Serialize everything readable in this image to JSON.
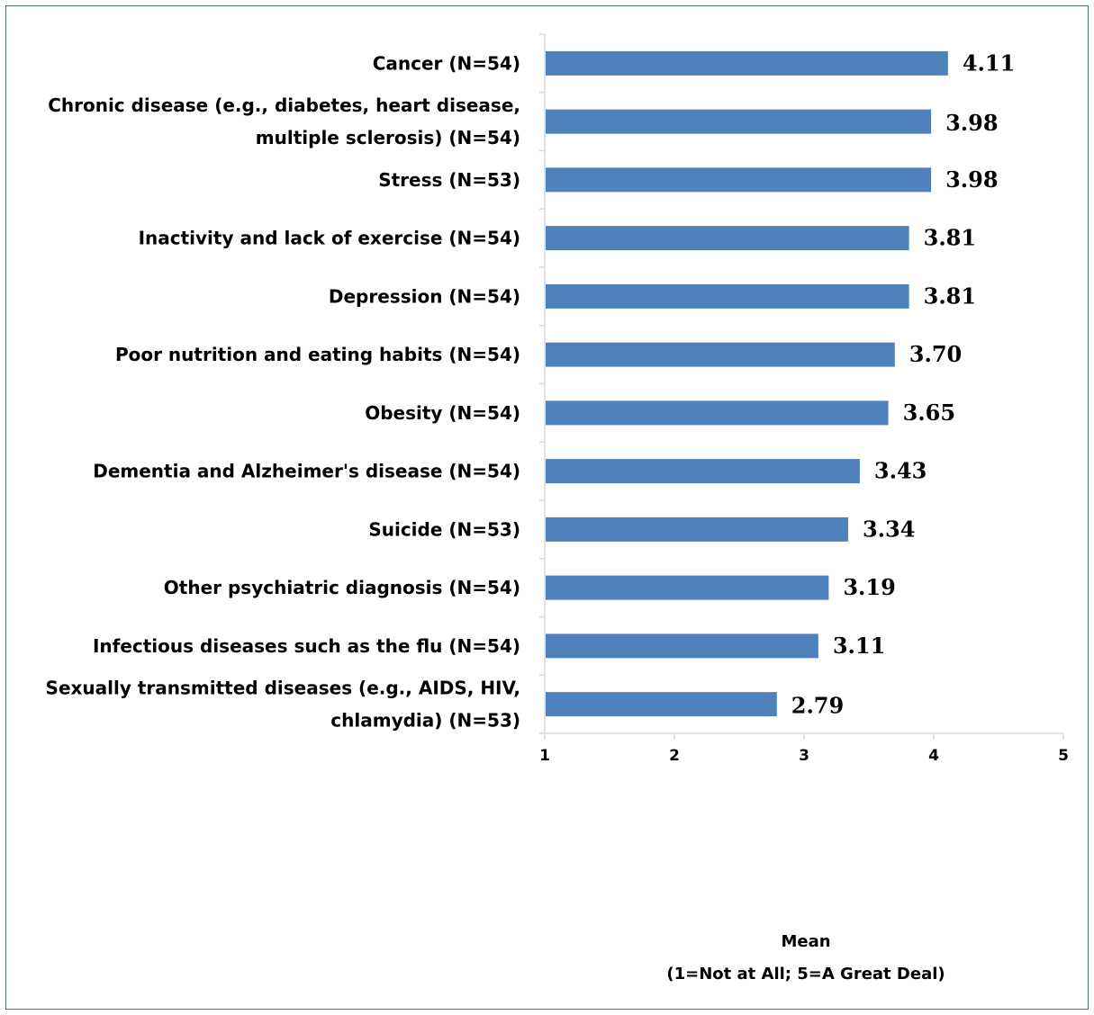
{
  "chart_data": {
    "type": "bar",
    "orientation": "horizontal",
    "categories": [
      [
        "Cancer (N=54)"
      ],
      [
        "Chronic disease (e.g., diabetes, heart disease,",
        "multiple sclerosis) (N=54)"
      ],
      [
        "Stress (N=53)"
      ],
      [
        "Inactivity and lack of exercise (N=54)"
      ],
      [
        "Depression (N=54)"
      ],
      [
        "Poor nutrition and eating habits (N=54)"
      ],
      [
        "Obesity (N=54)"
      ],
      [
        "Dementia and Alzheimer's disease (N=54)"
      ],
      [
        "Suicide (N=53)"
      ],
      [
        "Other psychiatric diagnosis (N=54)"
      ],
      [
        "Infectious diseases such as the flu (N=54)"
      ],
      [
        "Sexually transmitted diseases (e.g., AIDS, HIV,",
        "chlamydia) (N=53)"
      ]
    ],
    "values": [
      4.11,
      3.98,
      3.98,
      3.81,
      3.81,
      3.7,
      3.65,
      3.43,
      3.34,
      3.19,
      3.11,
      2.79
    ],
    "value_labels": [
      "4.11",
      "3.98",
      "3.98",
      "3.81",
      "3.81",
      "3.70",
      "3.65",
      "3.43",
      "3.34",
      "3.19",
      "3.11",
      "2.79"
    ],
    "xlim": [
      1,
      5
    ],
    "xticks": [
      "1",
      "2",
      "3",
      "4",
      "5"
    ],
    "xlabel": [
      "Mean",
      "(1=Not at All; 5=A Great Deal)"
    ],
    "grid": false,
    "bar_color": "#4f81bd",
    "axis_color": "#d9d9d9"
  }
}
